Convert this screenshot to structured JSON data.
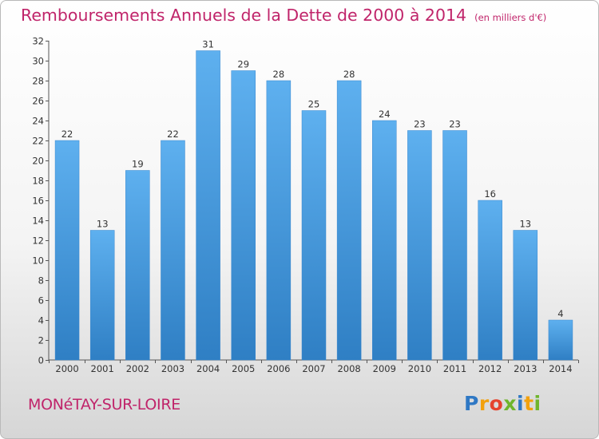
{
  "title": {
    "main": "Remboursements Annuels de la Dette de 2000 à 2014",
    "sub": "(en milliers d'€)"
  },
  "commune": "MONéTAY-SUR-LOIRE",
  "logo": {
    "letters": [
      "P",
      "r",
      "o",
      "x",
      "i",
      "t",
      "i"
    ]
  },
  "chart_data": {
    "type": "bar",
    "title": "Remboursements Annuels de la Dette de 2000 à 2014",
    "subtitle": "(en milliers d'€)",
    "categories": [
      "2000",
      "2001",
      "2002",
      "2003",
      "2004",
      "2005",
      "2006",
      "2007",
      "2008",
      "2009",
      "2010",
      "2011",
      "2012",
      "2013",
      "2014"
    ],
    "values": [
      22,
      13,
      19,
      22,
      31,
      29,
      28,
      25,
      28,
      24,
      23,
      23,
      16,
      13,
      4
    ],
    "ylim": [
      0,
      32
    ],
    "yticks": [
      0,
      2,
      4,
      6,
      8,
      10,
      12,
      14,
      16,
      18,
      20,
      22,
      24,
      26,
      28,
      30,
      32
    ],
    "grid": false,
    "bar_color": "#4f9fe0"
  }
}
